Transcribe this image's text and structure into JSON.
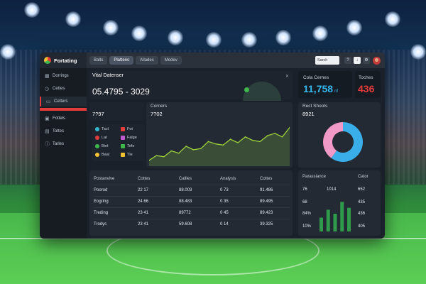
{
  "app": {
    "name": "Fortating"
  },
  "topbar": {
    "tabs": [
      "Balts",
      "Plattens",
      "Allades",
      "Medev"
    ],
    "search_placeholder": "Sarch",
    "buttons": [
      "?",
      "↓",
      "⚙"
    ]
  },
  "sidebar": {
    "items": [
      {
        "label": "Dorrings",
        "icon": "grid-icon"
      },
      {
        "label": "Cettes",
        "icon": "clock-icon"
      },
      {
        "label": "Cetters",
        "icon": "folder-icon"
      },
      {
        "label": "Fottels",
        "icon": "image-icon"
      },
      {
        "label": "Tottes",
        "icon": "chart-icon"
      },
      {
        "label": "Tarles",
        "icon": "info-icon"
      }
    ]
  },
  "vital": {
    "title": "Vital Datenser",
    "value": "05.4795 - 3029"
  },
  "cards": {
    "cola": {
      "label": "Cola Cernes",
      "value": "11,758",
      "unit": "nf"
    },
    "toches": {
      "label": "Toches",
      "value": "436"
    }
  },
  "small_stat": {
    "value": "7?97"
  },
  "corners": {
    "title": "Corners",
    "value": "7?02"
  },
  "legend": {
    "items": [
      {
        "label": "Tact",
        "color": "#2fb8d0"
      },
      {
        "label": "Fot",
        "color": "#e43b3b"
      },
      {
        "label": "Lat",
        "color": "#e43b3b"
      },
      {
        "label": "Falge",
        "color": "#c35bd0"
      },
      {
        "label": "Biet",
        "color": "#3fb84b"
      },
      {
        "label": "Tefe",
        "color": "#3fb84b"
      },
      {
        "label": "Baal",
        "color": "#f2c230"
      },
      {
        "label": "Tle",
        "color": "#f2c230"
      }
    ]
  },
  "rect_shoots": {
    "title": "Rect Shoots",
    "value": "8921"
  },
  "chart_data": [
    {
      "type": "area",
      "title": "Corners",
      "x": [
        1,
        2,
        3,
        4,
        5,
        6,
        7,
        8,
        9,
        10,
        11,
        12,
        13,
        14,
        15,
        16,
        17,
        18,
        19,
        20
      ],
      "series": [
        {
          "values": [
            10,
            18,
            16,
            26,
            22,
            34,
            28,
            30,
            42,
            38,
            36,
            46,
            40,
            50,
            44,
            42,
            52,
            56,
            50,
            66
          ]
        }
      ],
      "ylim": [
        0,
        80
      ]
    },
    {
      "type": "pie",
      "title": "Rect Shoots",
      "slices": [
        {
          "value": 60,
          "color": "#3aaee8"
        },
        {
          "value": 40,
          "color": "#f19ac8"
        }
      ]
    },
    {
      "type": "bar",
      "values": [
        14,
        22,
        18,
        30,
        24
      ],
      "ylim": [
        0,
        36
      ]
    }
  ],
  "table": {
    "headers": [
      "Postanvive",
      "Cottes",
      "Callles",
      "Analysis",
      "Cottes"
    ],
    "rows": [
      [
        "Poorod",
        "22 17",
        "88.003",
        "0 73",
        "91.486"
      ],
      [
        "Eogring",
        "24 66",
        "88.483",
        "0 35",
        "89.495"
      ],
      [
        "Treding",
        "23 41",
        "89772",
        "0 45",
        "89.423"
      ],
      [
        "Trodys",
        "23 41",
        "59.608",
        "0 14",
        "39.325"
      ]
    ]
  },
  "side_table": {
    "headers": [
      "Parassiance",
      "Cator"
    ],
    "rows": [
      [
        "76",
        "1014",
        "652"
      ],
      [
        "68",
        "",
        "435"
      ],
      [
        "84%",
        "",
        "436"
      ],
      [
        "10%",
        "",
        "405"
      ]
    ]
  }
}
